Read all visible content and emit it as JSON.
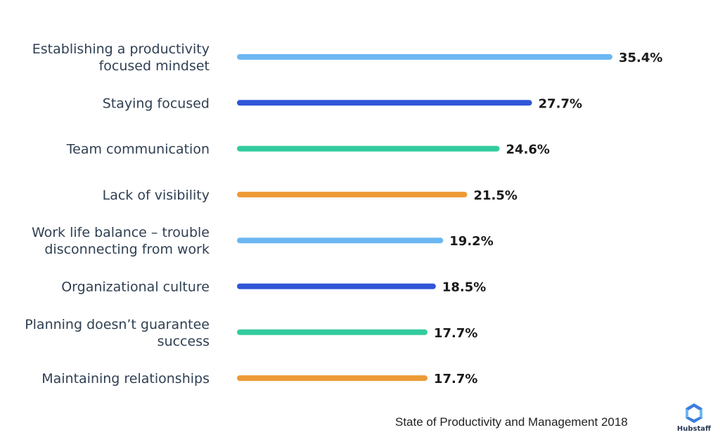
{
  "chart_data": {
    "type": "bar",
    "orientation": "horizontal",
    "categories": [
      [
        "Establishing a productivity",
        "focused mindset"
      ],
      [
        "Staying focused"
      ],
      [
        "Team communication"
      ],
      [
        "Lack of visibility"
      ],
      [
        "Work life balance – trouble",
        "disconnecting from work"
      ],
      [
        "Organizational culture"
      ],
      [
        "Planning doesn’t guarantee",
        "success"
      ],
      [
        "Maintaining relationships"
      ]
    ],
    "values": [
      35.4,
      27.7,
      24.6,
      21.5,
      19.2,
      18.5,
      17.7,
      17.7
    ],
    "value_labels": [
      "35.4%",
      "27.7%",
      "24.6%",
      "21.5%",
      "19.2%",
      "18.5%",
      "17.7%",
      "17.7%"
    ],
    "colors": [
      "#6cb8f2",
      "#3055d8",
      "#33cc9e",
      "#ed9a35",
      "#6cb8f2",
      "#3055d8",
      "#33cc9e",
      "#ed9a35"
    ],
    "xlim": [
      0,
      35.4
    ],
    "grid": false,
    "legend": false
  },
  "footer": {
    "source": "State of Productivity and Management 2018",
    "logo_text": "Hubstaff",
    "logo_icon": "hubstaff-logo-icon"
  }
}
